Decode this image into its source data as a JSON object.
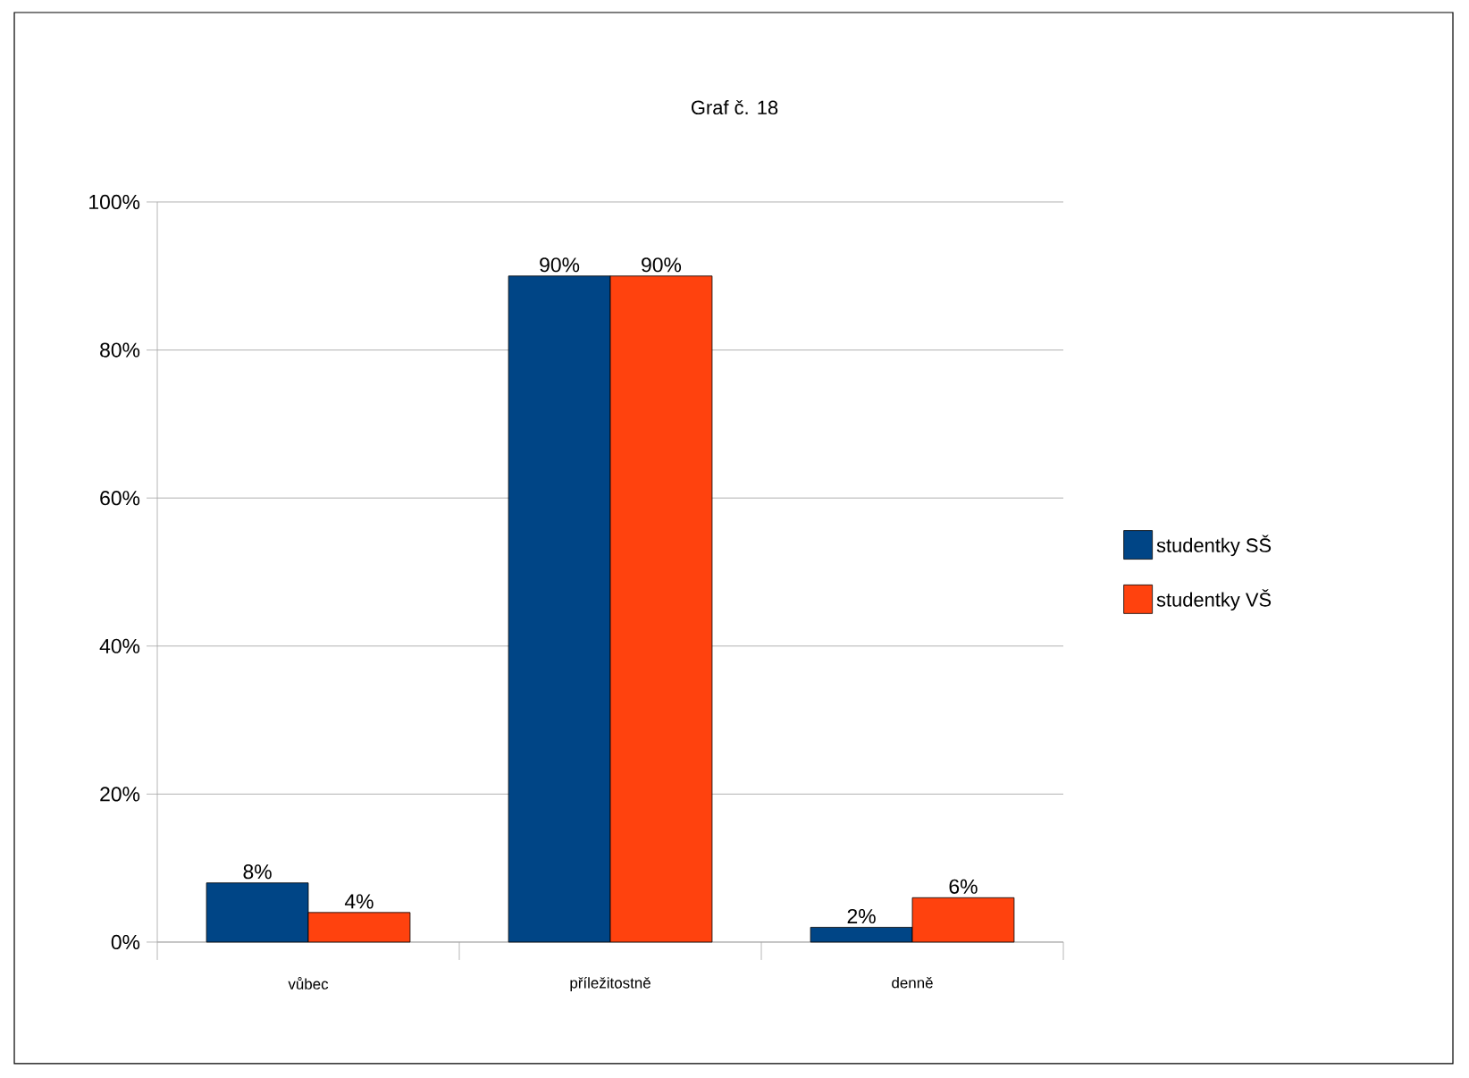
{
  "chart_data": {
    "type": "bar",
    "title": "Graf č. 18",
    "categories": [
      "vůbec",
      "příležitostně",
      "denně"
    ],
    "series": [
      {
        "name": "studentky SŠ",
        "color": "#004586",
        "values": [
          8,
          90,
          2
        ],
        "value_labels": [
          "8%",
          "90%",
          "2%"
        ]
      },
      {
        "name": "studentky VŠ",
        "color": "#ff420e",
        "values": [
          4,
          90,
          6
        ],
        "value_labels": [
          "4%",
          "90%",
          "6%"
        ]
      }
    ],
    "ylim": [
      0,
      100
    ],
    "yticks": [
      {
        "value": 0,
        "label": "0%"
      },
      {
        "value": 20,
        "label": "20%"
      },
      {
        "value": 40,
        "label": "40%"
      },
      {
        "value": 60,
        "label": "60%"
      },
      {
        "value": 80,
        "label": "80%"
      },
      {
        "value": 100,
        "label": "100%"
      }
    ],
    "grid": "y",
    "legend": "right"
  }
}
